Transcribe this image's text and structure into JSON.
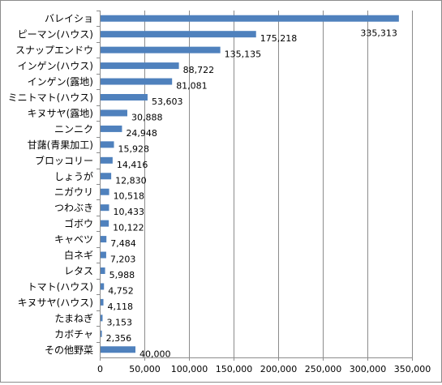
{
  "chart_data": {
    "type": "bar",
    "orientation": "horizontal",
    "categories": [
      "バレイショ",
      "ピーマン(ハウス)",
      "スナップエンドウ",
      "インゲン(ハウス)",
      "インゲン(露地)",
      "ミニトマト(ハウス)",
      "キヌサヤ(露地)",
      "ニンニク",
      "甘藷(青果加工)",
      "ブロッコリー",
      "しょうが",
      "ニガウリ",
      "つわぶき",
      "ゴボウ",
      "キャベツ",
      "白ネギ",
      "レタス",
      "トマト(ハウス)",
      "キヌサヤ(ハウス)",
      "たまねぎ",
      "カボチャ",
      "その他野菜"
    ],
    "values": [
      335313,
      175218,
      135135,
      88722,
      81081,
      53603,
      30888,
      24948,
      15928,
      14416,
      12830,
      10518,
      10433,
      10122,
      7484,
      7203,
      5988,
      4752,
      4118,
      3153,
      2356,
      40000
    ],
    "value_labels": [
      "335,313",
      "175,218",
      "135,135",
      "88,722",
      "81,081",
      "53,603",
      "30,888",
      "24,948",
      "15,928",
      "14,416",
      "12,830",
      "10,518",
      "10,433",
      "10,122",
      "7,484",
      "7,203",
      "5,988",
      "4,752",
      "4,118",
      "3,153",
      "2,356",
      "40,000"
    ],
    "xlim": [
      0,
      350000
    ],
    "xticks": [
      0,
      50000,
      100000,
      150000,
      200000,
      250000,
      300000,
      350000
    ],
    "xtick_labels": [
      "0",
      "50,000",
      "100,000",
      "150,000",
      "200,000",
      "250,000",
      "300,000",
      "350,000"
    ],
    "title": "",
    "xlabel": "",
    "ylabel": "",
    "grid": "vertical",
    "legend": "none",
    "bar_color": "#4f81bd"
  }
}
